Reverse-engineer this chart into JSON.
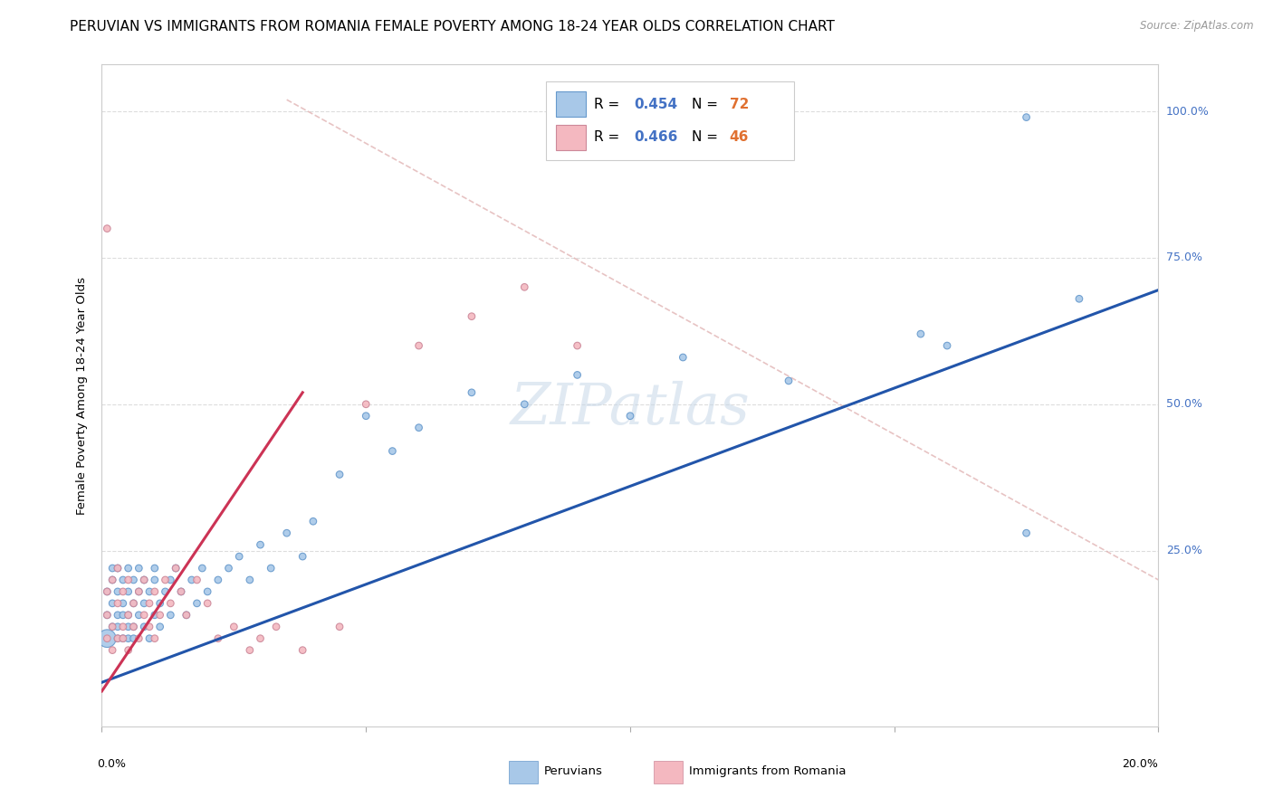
{
  "title": "PERUVIAN VS IMMIGRANTS FROM ROMANIA FEMALE POVERTY AMONG 18-24 YEAR OLDS CORRELATION CHART",
  "source": "Source: ZipAtlas.com",
  "ylabel": "Female Poverty Among 18-24 Year Olds",
  "ytick_labels": [
    "25.0%",
    "50.0%",
    "75.0%",
    "100.0%"
  ],
  "ytick_values": [
    0.25,
    0.5,
    0.75,
    1.0
  ],
  "xlim": [
    0,
    0.2
  ],
  "ylim": [
    -0.05,
    1.08
  ],
  "blue_color": "#a8c8e8",
  "pink_color": "#f4b8c0",
  "blue_edge_color": "#6699cc",
  "pink_edge_color": "#cc8899",
  "blue_line_color": "#2255aa",
  "pink_line_color": "#cc3355",
  "legend_r_color": "#4472c4",
  "legend_n_color": "#e07030",
  "watermark": "ZIPatlas",
  "bg_color": "#ffffff",
  "grid_color": "#dddddd",
  "title_fontsize": 11,
  "axis_fontsize": 9.5,
  "tick_fontsize": 9,
  "blue_trend": [
    0.0,
    0.025,
    0.2,
    0.695
  ],
  "pink_trend": [
    0.0,
    0.01,
    0.038,
    0.52
  ],
  "ref_line": [
    0.035,
    1.02,
    0.2,
    0.2
  ],
  "blue_scatter_x": [
    0.001,
    0.001,
    0.001,
    0.002,
    0.002,
    0.002,
    0.002,
    0.003,
    0.003,
    0.003,
    0.003,
    0.003,
    0.004,
    0.004,
    0.004,
    0.004,
    0.005,
    0.005,
    0.005,
    0.005,
    0.005,
    0.006,
    0.006,
    0.006,
    0.006,
    0.007,
    0.007,
    0.007,
    0.008,
    0.008,
    0.008,
    0.009,
    0.009,
    0.01,
    0.01,
    0.01,
    0.011,
    0.011,
    0.012,
    0.013,
    0.013,
    0.014,
    0.015,
    0.016,
    0.017,
    0.018,
    0.019,
    0.02,
    0.022,
    0.024,
    0.026,
    0.028,
    0.03,
    0.032,
    0.035,
    0.038,
    0.04,
    0.045,
    0.05,
    0.055,
    0.06,
    0.07,
    0.08,
    0.09,
    0.1,
    0.11,
    0.13,
    0.155,
    0.16,
    0.175,
    0.185,
    0.175
  ],
  "blue_scatter_y": [
    0.1,
    0.14,
    0.18,
    0.12,
    0.16,
    0.2,
    0.22,
    0.1,
    0.14,
    0.18,
    0.22,
    0.12,
    0.1,
    0.16,
    0.2,
    0.14,
    0.12,
    0.18,
    0.1,
    0.14,
    0.22,
    0.16,
    0.2,
    0.12,
    0.1,
    0.18,
    0.14,
    0.22,
    0.16,
    0.2,
    0.12,
    0.18,
    0.1,
    0.2,
    0.14,
    0.22,
    0.16,
    0.12,
    0.18,
    0.14,
    0.2,
    0.22,
    0.18,
    0.14,
    0.2,
    0.16,
    0.22,
    0.18,
    0.2,
    0.22,
    0.24,
    0.2,
    0.26,
    0.22,
    0.28,
    0.24,
    0.3,
    0.38,
    0.48,
    0.42,
    0.46,
    0.52,
    0.5,
    0.55,
    0.48,
    0.58,
    0.54,
    0.62,
    0.6,
    0.28,
    0.68,
    0.99
  ],
  "blue_scatter_size": [
    200,
    30,
    30,
    30,
    30,
    30,
    30,
    30,
    30,
    30,
    30,
    30,
    30,
    30,
    30,
    30,
    30,
    30,
    30,
    30,
    30,
    30,
    30,
    30,
    30,
    30,
    30,
    30,
    30,
    30,
    30,
    30,
    30,
    30,
    30,
    30,
    30,
    30,
    30,
    30,
    30,
    30,
    30,
    30,
    30,
    30,
    30,
    30,
    30,
    30,
    30,
    30,
    30,
    30,
    30,
    30,
    30,
    30,
    30,
    30,
    30,
    30,
    30,
    30,
    30,
    30,
    30,
    30,
    30,
    30,
    30,
    30
  ],
  "pink_scatter_x": [
    0.001,
    0.001,
    0.001,
    0.002,
    0.002,
    0.002,
    0.003,
    0.003,
    0.003,
    0.004,
    0.004,
    0.004,
    0.005,
    0.005,
    0.005,
    0.006,
    0.006,
    0.007,
    0.007,
    0.008,
    0.008,
    0.009,
    0.009,
    0.01,
    0.01,
    0.011,
    0.012,
    0.013,
    0.014,
    0.015,
    0.016,
    0.018,
    0.02,
    0.022,
    0.025,
    0.028,
    0.03,
    0.033,
    0.038,
    0.045,
    0.05,
    0.06,
    0.07,
    0.08,
    0.09,
    0.001
  ],
  "pink_scatter_y": [
    0.1,
    0.14,
    0.18,
    0.08,
    0.12,
    0.2,
    0.1,
    0.16,
    0.22,
    0.12,
    0.18,
    0.1,
    0.14,
    0.2,
    0.08,
    0.16,
    0.12,
    0.18,
    0.1,
    0.14,
    0.2,
    0.16,
    0.12,
    0.1,
    0.18,
    0.14,
    0.2,
    0.16,
    0.22,
    0.18,
    0.14,
    0.2,
    0.16,
    0.1,
    0.12,
    0.08,
    0.1,
    0.12,
    0.08,
    0.12,
    0.5,
    0.6,
    0.65,
    0.7,
    0.6,
    0.8
  ],
  "pink_scatter_size": [
    30,
    30,
    30,
    30,
    30,
    30,
    30,
    30,
    30,
    30,
    30,
    30,
    30,
    30,
    30,
    30,
    30,
    30,
    30,
    30,
    30,
    30,
    30,
    30,
    30,
    30,
    30,
    30,
    30,
    30,
    30,
    30,
    30,
    30,
    30,
    30,
    30,
    30,
    30,
    30,
    30,
    30,
    30,
    30,
    30,
    30
  ]
}
